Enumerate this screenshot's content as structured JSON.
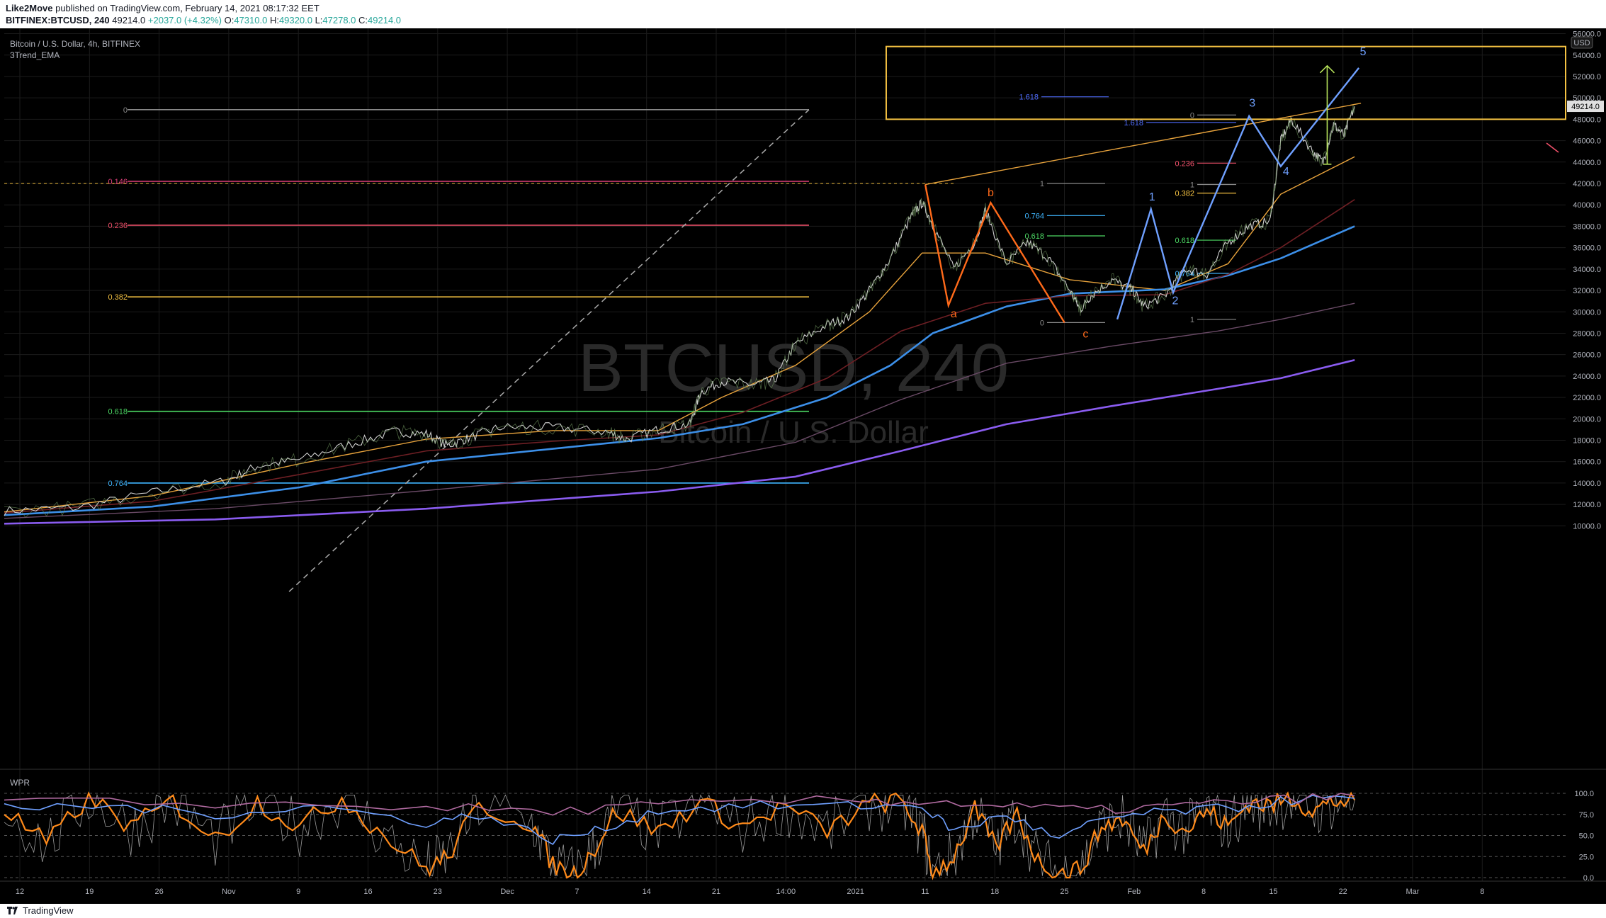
{
  "header": {
    "author": "Like2Move",
    "published_text": " published on TradingView.com, February 14, 2021 08:17:32 EET",
    "symbol_line": "BITFINEX:BTCUSD, 240",
    "price": "49214.0",
    "change": "+2037.0 (+4.32%)",
    "ohlc": [
      {
        "k": "O:",
        "v": "47310.0"
      },
      {
        "k": "H:",
        "v": "49320.0"
      },
      {
        "k": "L:",
        "v": "47278.0"
      },
      {
        "k": "C:",
        "v": "49214.0"
      }
    ]
  },
  "chart_legend": {
    "title": "Bitcoin / U.S. Dollar, 4h, BITFINEX",
    "indicator": "3Trend_EMA",
    "watermark_symbol": "BTCUSD, 240",
    "watermark_name": "Bitcoin / U.S. Dollar",
    "oscillator": "WPR",
    "currency": "USD",
    "last_price_label": "49214.0"
  },
  "colors": {
    "background": "#000000",
    "price": "#cfcfcf",
    "ema_fast": "#e8a33c",
    "ema_blue": "#3c8fe8",
    "ema_purple": "#8a5cf0",
    "ema_dark_red": "#6e1f24",
    "ema_mauve": "#6a4a66",
    "wave_orange": "#ff6a1a",
    "wave_blue": "#6fa0ff",
    "box": "#f5c242"
  },
  "chart_data": {
    "type": "line",
    "y_axis": {
      "ticks": [
        10000,
        12000,
        14000,
        16000,
        18000,
        20000,
        22000,
        24000,
        26000,
        28000,
        30000,
        32000,
        34000,
        36000,
        38000,
        40000,
        42000,
        44000,
        46000,
        48000,
        50000,
        52000,
        54000,
        56000
      ],
      "tick_labels": [
        "10000.0",
        "12000.0",
        "14000.0",
        "16000.0",
        "18000.0",
        "20000.0",
        "22000.0",
        "24000.0",
        "26000.0",
        "28000.0",
        "30000.0",
        "32000.0",
        "34000.0",
        "36000.0",
        "38000.0",
        "40000.0",
        "42000.0",
        "44000.0",
        "46000.0",
        "48000.0",
        "50000.0",
        "52000.0",
        "54000.0",
        "56000.0"
      ],
      "range": [
        8500,
        56500
      ]
    },
    "x_axis": {
      "labels": [
        "12",
        "19",
        "26",
        "Nov",
        "9",
        "16",
        "23",
        "Dec",
        "7",
        "14",
        "21",
        "14:00",
        "2021",
        "11",
        "18",
        "25",
        "Feb",
        "8",
        "15",
        "22",
        "Mar",
        "8"
      ],
      "range_days": [
        0,
        148
      ]
    },
    "wpr_axis": {
      "tick_labels": [
        "0.0",
        "25.0",
        "50.0",
        "75.0",
        "100.0"
      ],
      "range": [
        0,
        100
      ]
    },
    "price_series": {
      "name": "BTCUSD 4h close (approx.)",
      "points": [
        [
          0,
          11400
        ],
        [
          7,
          11700
        ],
        [
          14,
          13100
        ],
        [
          21,
          14200
        ],
        [
          24,
          15600
        ],
        [
          28,
          16200
        ],
        [
          33,
          17700
        ],
        [
          37,
          18800
        ],
        [
          40,
          18600
        ],
        [
          42,
          17500
        ],
        [
          44,
          18200
        ],
        [
          47,
          19200
        ],
        [
          52,
          19200
        ],
        [
          57,
          18800
        ],
        [
          59,
          18100
        ],
        [
          62,
          19000
        ],
        [
          65,
          19500
        ],
        [
          66,
          22500
        ],
        [
          68,
          23500
        ],
        [
          71,
          23200
        ],
        [
          73,
          23600
        ],
        [
          75,
          27000
        ],
        [
          78,
          28800
        ],
        [
          80,
          29500
        ],
        [
          82,
          32000
        ],
        [
          84,
          35000
        ],
        [
          86,
          39000
        ],
        [
          87,
          40200
        ],
        [
          88,
          38200
        ],
        [
          90,
          34000
        ],
        [
          92,
          36500
        ],
        [
          93,
          39500
        ],
        [
          95,
          34500
        ],
        [
          97,
          36500
        ],
        [
          99,
          35000
        ],
        [
          101,
          32000
        ],
        [
          102,
          30200
        ],
        [
          103,
          31500
        ],
        [
          105,
          33000
        ],
        [
          107,
          32000
        ],
        [
          108,
          30500
        ],
        [
          110,
          31500
        ],
        [
          112,
          34000
        ],
        [
          114,
          33500
        ],
        [
          116,
          36500
        ],
        [
          118,
          38000
        ],
        [
          120,
          38500
        ],
        [
          121,
          46000
        ],
        [
          122,
          48000
        ],
        [
          124,
          45000
        ],
        [
          125,
          44000
        ],
        [
          126,
          47500
        ],
        [
          127,
          46500
        ],
        [
          128,
          49214
        ]
      ]
    },
    "ema_series": [
      {
        "name": "EMA fast",
        "points": [
          [
            0,
            11300
          ],
          [
            14,
            12800
          ],
          [
            28,
            15800
          ],
          [
            40,
            18100
          ],
          [
            52,
            18900
          ],
          [
            62,
            18900
          ],
          [
            68,
            22000
          ],
          [
            75,
            25000
          ],
          [
            82,
            30000
          ],
          [
            87,
            35500
          ],
          [
            93,
            35500
          ],
          [
            101,
            33000
          ],
          [
            110,
            32000
          ],
          [
            116,
            34500
          ],
          [
            121,
            41000
          ],
          [
            128,
            44500
          ]
        ]
      },
      {
        "name": "EMA blue",
        "points": [
          [
            0,
            11000
          ],
          [
            14,
            11800
          ],
          [
            28,
            13600
          ],
          [
            40,
            16000
          ],
          [
            52,
            17200
          ],
          [
            62,
            18200
          ],
          [
            70,
            19500
          ],
          [
            78,
            22000
          ],
          [
            84,
            25000
          ],
          [
            88,
            28000
          ],
          [
            95,
            30500
          ],
          [
            101,
            31700
          ],
          [
            110,
            32100
          ],
          [
            116,
            33400
          ],
          [
            121,
            35000
          ],
          [
            128,
            38000
          ]
        ]
      },
      {
        "name": "EMA purple",
        "points": [
          [
            0,
            10200
          ],
          [
            20,
            10600
          ],
          [
            40,
            11600
          ],
          [
            62,
            13200
          ],
          [
            75,
            14600
          ],
          [
            85,
            17000
          ],
          [
            95,
            19500
          ],
          [
            105,
            21200
          ],
          [
            115,
            22800
          ],
          [
            121,
            23800
          ],
          [
            128,
            25500
          ]
        ]
      },
      {
        "name": "EMA dark red",
        "points": [
          [
            0,
            11200
          ],
          [
            14,
            12300
          ],
          [
            28,
            14800
          ],
          [
            40,
            17000
          ],
          [
            52,
            17900
          ],
          [
            62,
            18500
          ],
          [
            70,
            20600
          ],
          [
            78,
            23800
          ],
          [
            85,
            28200
          ],
          [
            93,
            30800
          ],
          [
            101,
            31500
          ],
          [
            110,
            31600
          ],
          [
            116,
            33500
          ],
          [
            121,
            36000
          ],
          [
            128,
            40500
          ]
        ]
      },
      {
        "name": "EMA mauve",
        "points": [
          [
            0,
            10700
          ],
          [
            20,
            11600
          ],
          [
            40,
            13300
          ],
          [
            62,
            15300
          ],
          [
            75,
            17800
          ],
          [
            85,
            21800
          ],
          [
            95,
            25200
          ],
          [
            105,
            26800
          ],
          [
            115,
            28200
          ],
          [
            121,
            29300
          ],
          [
            128,
            30800
          ]
        ]
      }
    ],
    "wpr_series": [
      {
        "name": "WPR orange",
        "points": [
          [
            0,
            80
          ],
          [
            4,
            40
          ],
          [
            8,
            95
          ],
          [
            12,
            60
          ],
          [
            16,
            90
          ],
          [
            20,
            45
          ],
          [
            24,
            90
          ],
          [
            28,
            60
          ],
          [
            32,
            95
          ],
          [
            36,
            50
          ],
          [
            40,
            10
          ],
          [
            42,
            25
          ],
          [
            45,
            85
          ],
          [
            50,
            65
          ],
          [
            52,
            15
          ],
          [
            54,
            5
          ],
          [
            56,
            35
          ],
          [
            58,
            80
          ],
          [
            62,
            55
          ],
          [
            66,
            90
          ],
          [
            70,
            60
          ],
          [
            74,
            85
          ],
          [
            78,
            55
          ],
          [
            82,
            88
          ],
          [
            85,
            90
          ],
          [
            87,
            55
          ],
          [
            88,
            5
          ],
          [
            90,
            25
          ],
          [
            92,
            80
          ],
          [
            94,
            35
          ],
          [
            96,
            75
          ],
          [
            98,
            20
          ],
          [
            100,
            5
          ],
          [
            102,
            10
          ],
          [
            104,
            60
          ],
          [
            106,
            70
          ],
          [
            108,
            30
          ],
          [
            110,
            75
          ],
          [
            112,
            55
          ],
          [
            114,
            80
          ],
          [
            116,
            60
          ],
          [
            118,
            90
          ],
          [
            120,
            85
          ],
          [
            122,
            95
          ],
          [
            124,
            80
          ],
          [
            126,
            90
          ],
          [
            128,
            92
          ]
        ]
      },
      {
        "name": "WPR blue",
        "points": [
          [
            0,
            82
          ],
          [
            10,
            85
          ],
          [
            20,
            75
          ],
          [
            30,
            85
          ],
          [
            40,
            65
          ],
          [
            45,
            75
          ],
          [
            52,
            45
          ],
          [
            56,
            55
          ],
          [
            62,
            80
          ],
          [
            70,
            85
          ],
          [
            80,
            85
          ],
          [
            87,
            85
          ],
          [
            90,
            55
          ],
          [
            95,
            75
          ],
          [
            100,
            45
          ],
          [
            104,
            70
          ],
          [
            110,
            78
          ],
          [
            116,
            82
          ],
          [
            122,
            92
          ],
          [
            128,
            94
          ]
        ]
      },
      {
        "name": "WPR mauve",
        "points": [
          [
            0,
            90
          ],
          [
            20,
            88
          ],
          [
            40,
            84
          ],
          [
            52,
            78
          ],
          [
            62,
            86
          ],
          [
            80,
            92
          ],
          [
            88,
            90
          ],
          [
            96,
            84
          ],
          [
            104,
            80
          ],
          [
            112,
            86
          ],
          [
            120,
            92
          ],
          [
            128,
            97
          ]
        ]
      }
    ],
    "fib_levels_left": [
      {
        "ratio": "0",
        "price": 48900
      },
      {
        "ratio": "0.146",
        "price": 42200
      },
      {
        "ratio": "0.236",
        "price": 38100
      },
      {
        "ratio": "0.382",
        "price": 31400
      },
      {
        "ratio": "0.618",
        "price": 20700
      },
      {
        "ratio": "0.764",
        "price": 14000
      }
    ],
    "fib_levels_mid": [
      {
        "ratio": "1",
        "price": 42000
      },
      {
        "ratio": "0.764",
        "price": 39000
      },
      {
        "ratio": "0.618",
        "price": 37100
      },
      {
        "ratio": "0",
        "price": 29000
      }
    ],
    "fib_levels_right": [
      {
        "ratio": "1.618",
        "price": 50100
      },
      {
        "ratio": "0",
        "price": 48400
      },
      {
        "ratio": "1.618",
        "price": 47700
      },
      {
        "ratio": "0.236",
        "price": 43900
      },
      {
        "ratio": "1",
        "price": 41900
      },
      {
        "ratio": "0.382",
        "price": 41100
      },
      {
        "ratio": "0.618",
        "price": 36700
      },
      {
        "ratio": "0.764",
        "price": 33600
      },
      {
        "ratio": "1",
        "price": 29300
      }
    ],
    "wave_labels": [
      {
        "text": "a",
        "day": 90,
        "price": 29500,
        "color": "#ff6a1a"
      },
      {
        "text": "b",
        "day": 93.5,
        "price": 40800,
        "color": "#ff6a1a"
      },
      {
        "text": "c",
        "day": 102.5,
        "price": 27600,
        "color": "#ff6a1a"
      },
      {
        "text": "1",
        "day": 108.8,
        "price": 40400,
        "color": "#6fa0ff"
      },
      {
        "text": "2",
        "day": 111,
        "price": 30700,
        "color": "#6fa0ff"
      },
      {
        "text": "3",
        "day": 118.3,
        "price": 49200,
        "color": "#6fa0ff"
      },
      {
        "text": "4",
        "day": 121.5,
        "price": 42800,
        "color": "#6fa0ff"
      },
      {
        "text": "5",
        "day": 128.8,
        "price": 54000,
        "color": "#6fa0ff"
      }
    ],
    "wave_abc": [
      [
        87.3,
        41900
      ],
      [
        89.5,
        30600
      ],
      [
        93.5,
        40200
      ],
      [
        100.5,
        29000
      ]
    ],
    "wave_12345": [
      [
        105.5,
        29300
      ],
      [
        108.7,
        39600
      ],
      [
        110.8,
        31800
      ],
      [
        118.0,
        48300
      ],
      [
        121.0,
        43600
      ],
      [
        128.4,
        52800
      ]
    ],
    "target_box": {
      "day_start": 83.6,
      "day_end": 148,
      "price_low": 48000,
      "price_high": 54800
    },
    "projection_arrow": {
      "day": 125.4,
      "price_from": 43800,
      "price_to": 53000
    }
  }
}
